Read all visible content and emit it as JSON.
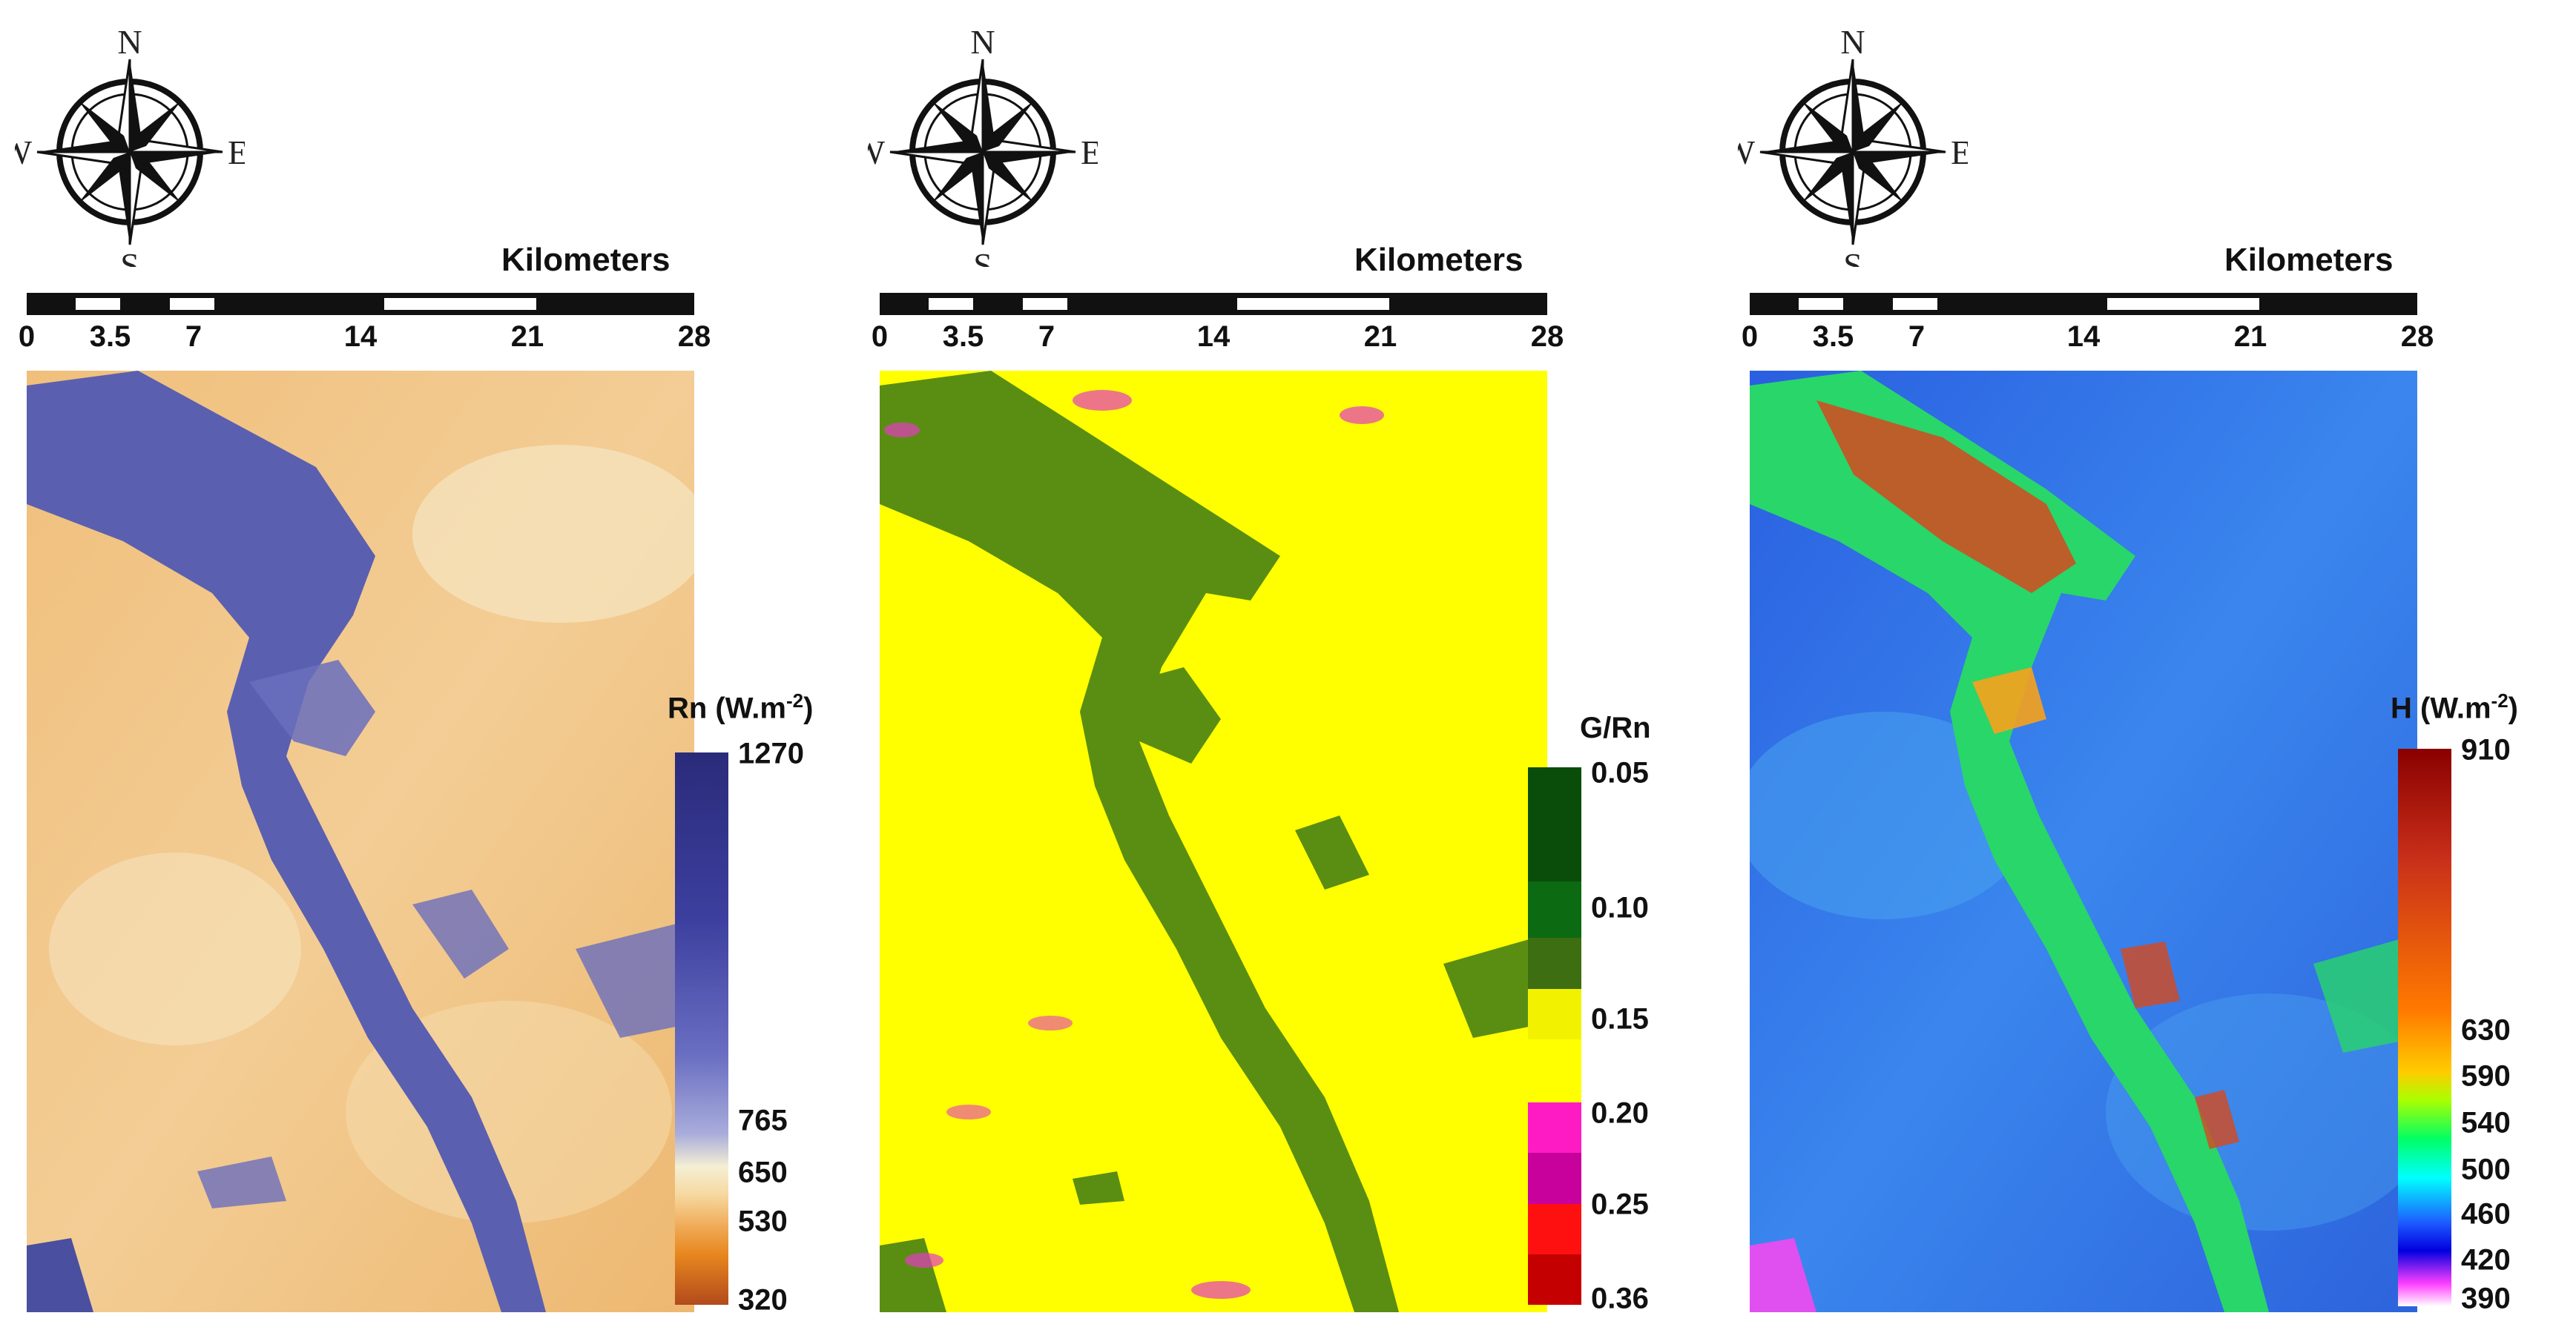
{
  "compass": {
    "n": "N",
    "s": "S",
    "e": "E",
    "w": "W"
  },
  "scale": {
    "title": "Kilometers",
    "max_km": 28,
    "ticks": [
      "0",
      "3.5",
      "7",
      "14",
      "21",
      "28"
    ]
  },
  "panels": [
    {
      "legend_title": "Rn (W.m",
      "legend_sup": "-2",
      "legend_close": ")",
      "legend_labels": [
        {
          "text": "1270",
          "value": 1270
        },
        {
          "text": "765",
          "value": 765
        },
        {
          "text": "650",
          "value": 650
        },
        {
          "text": "530",
          "value": 530
        },
        {
          "text": "320",
          "value": 320
        }
      ],
      "legend_colors": [
        "#2a2b7a",
        "#3c3f9e",
        "#6a6fc2",
        "#a9acdb",
        "#f4efd4",
        "#f6d9a0",
        "#efa955",
        "#e7861e",
        "#b24a1c"
      ],
      "map_colors": {
        "background": "#f1c587",
        "feature": "#5b5fb0",
        "accent": "#f6e6c2"
      }
    },
    {
      "legend_title": "G/Rn",
      "legend_sup": "",
      "legend_close": "",
      "legend_labels": [
        {
          "text": "0.05",
          "value": 0.05
        },
        {
          "text": "0.10",
          "value": 0.1
        },
        {
          "text": "0.15",
          "value": 0.15
        },
        {
          "text": "0.20",
          "value": 0.2
        },
        {
          "text": "0.25",
          "value": 0.25
        },
        {
          "text": "0.36",
          "value": 0.36
        }
      ],
      "legend_colors": [
        "#0a4d0a",
        "#0c6a12",
        "#3d6e12",
        "#f2f200",
        "#ffff00",
        "#ff1bc4",
        "#c8009c",
        "#ff1010",
        "#c40000"
      ],
      "map_colors": {
        "background": "#ffff00",
        "feature": "#5a8e12",
        "accent": "#e43cc0"
      }
    },
    {
      "legend_title": "H (W.m",
      "legend_sup": "-2",
      "legend_close": ")",
      "legend_labels": [
        {
          "text": "910",
          "value": 910
        },
        {
          "text": "630",
          "value": 630
        },
        {
          "text": "590",
          "value": 590
        },
        {
          "text": "540",
          "value": 540
        },
        {
          "text": "500",
          "value": 500
        },
        {
          "text": "460",
          "value": 460
        },
        {
          "text": "420",
          "value": 420
        },
        {
          "text": "390",
          "value": 390
        }
      ],
      "legend_colors": [
        "#8a0000",
        "#c9301a",
        "#ff7a00",
        "#ffcc00",
        "#aaff00",
        "#00ff66",
        "#00ffff",
        "#1e5bff",
        "#0000e0",
        "#ff40ff",
        "#ffffff"
      ],
      "map_colors": {
        "background": "#2d6ee6",
        "feature": "#28d66a",
        "accent": "#d6491e"
      }
    }
  ]
}
